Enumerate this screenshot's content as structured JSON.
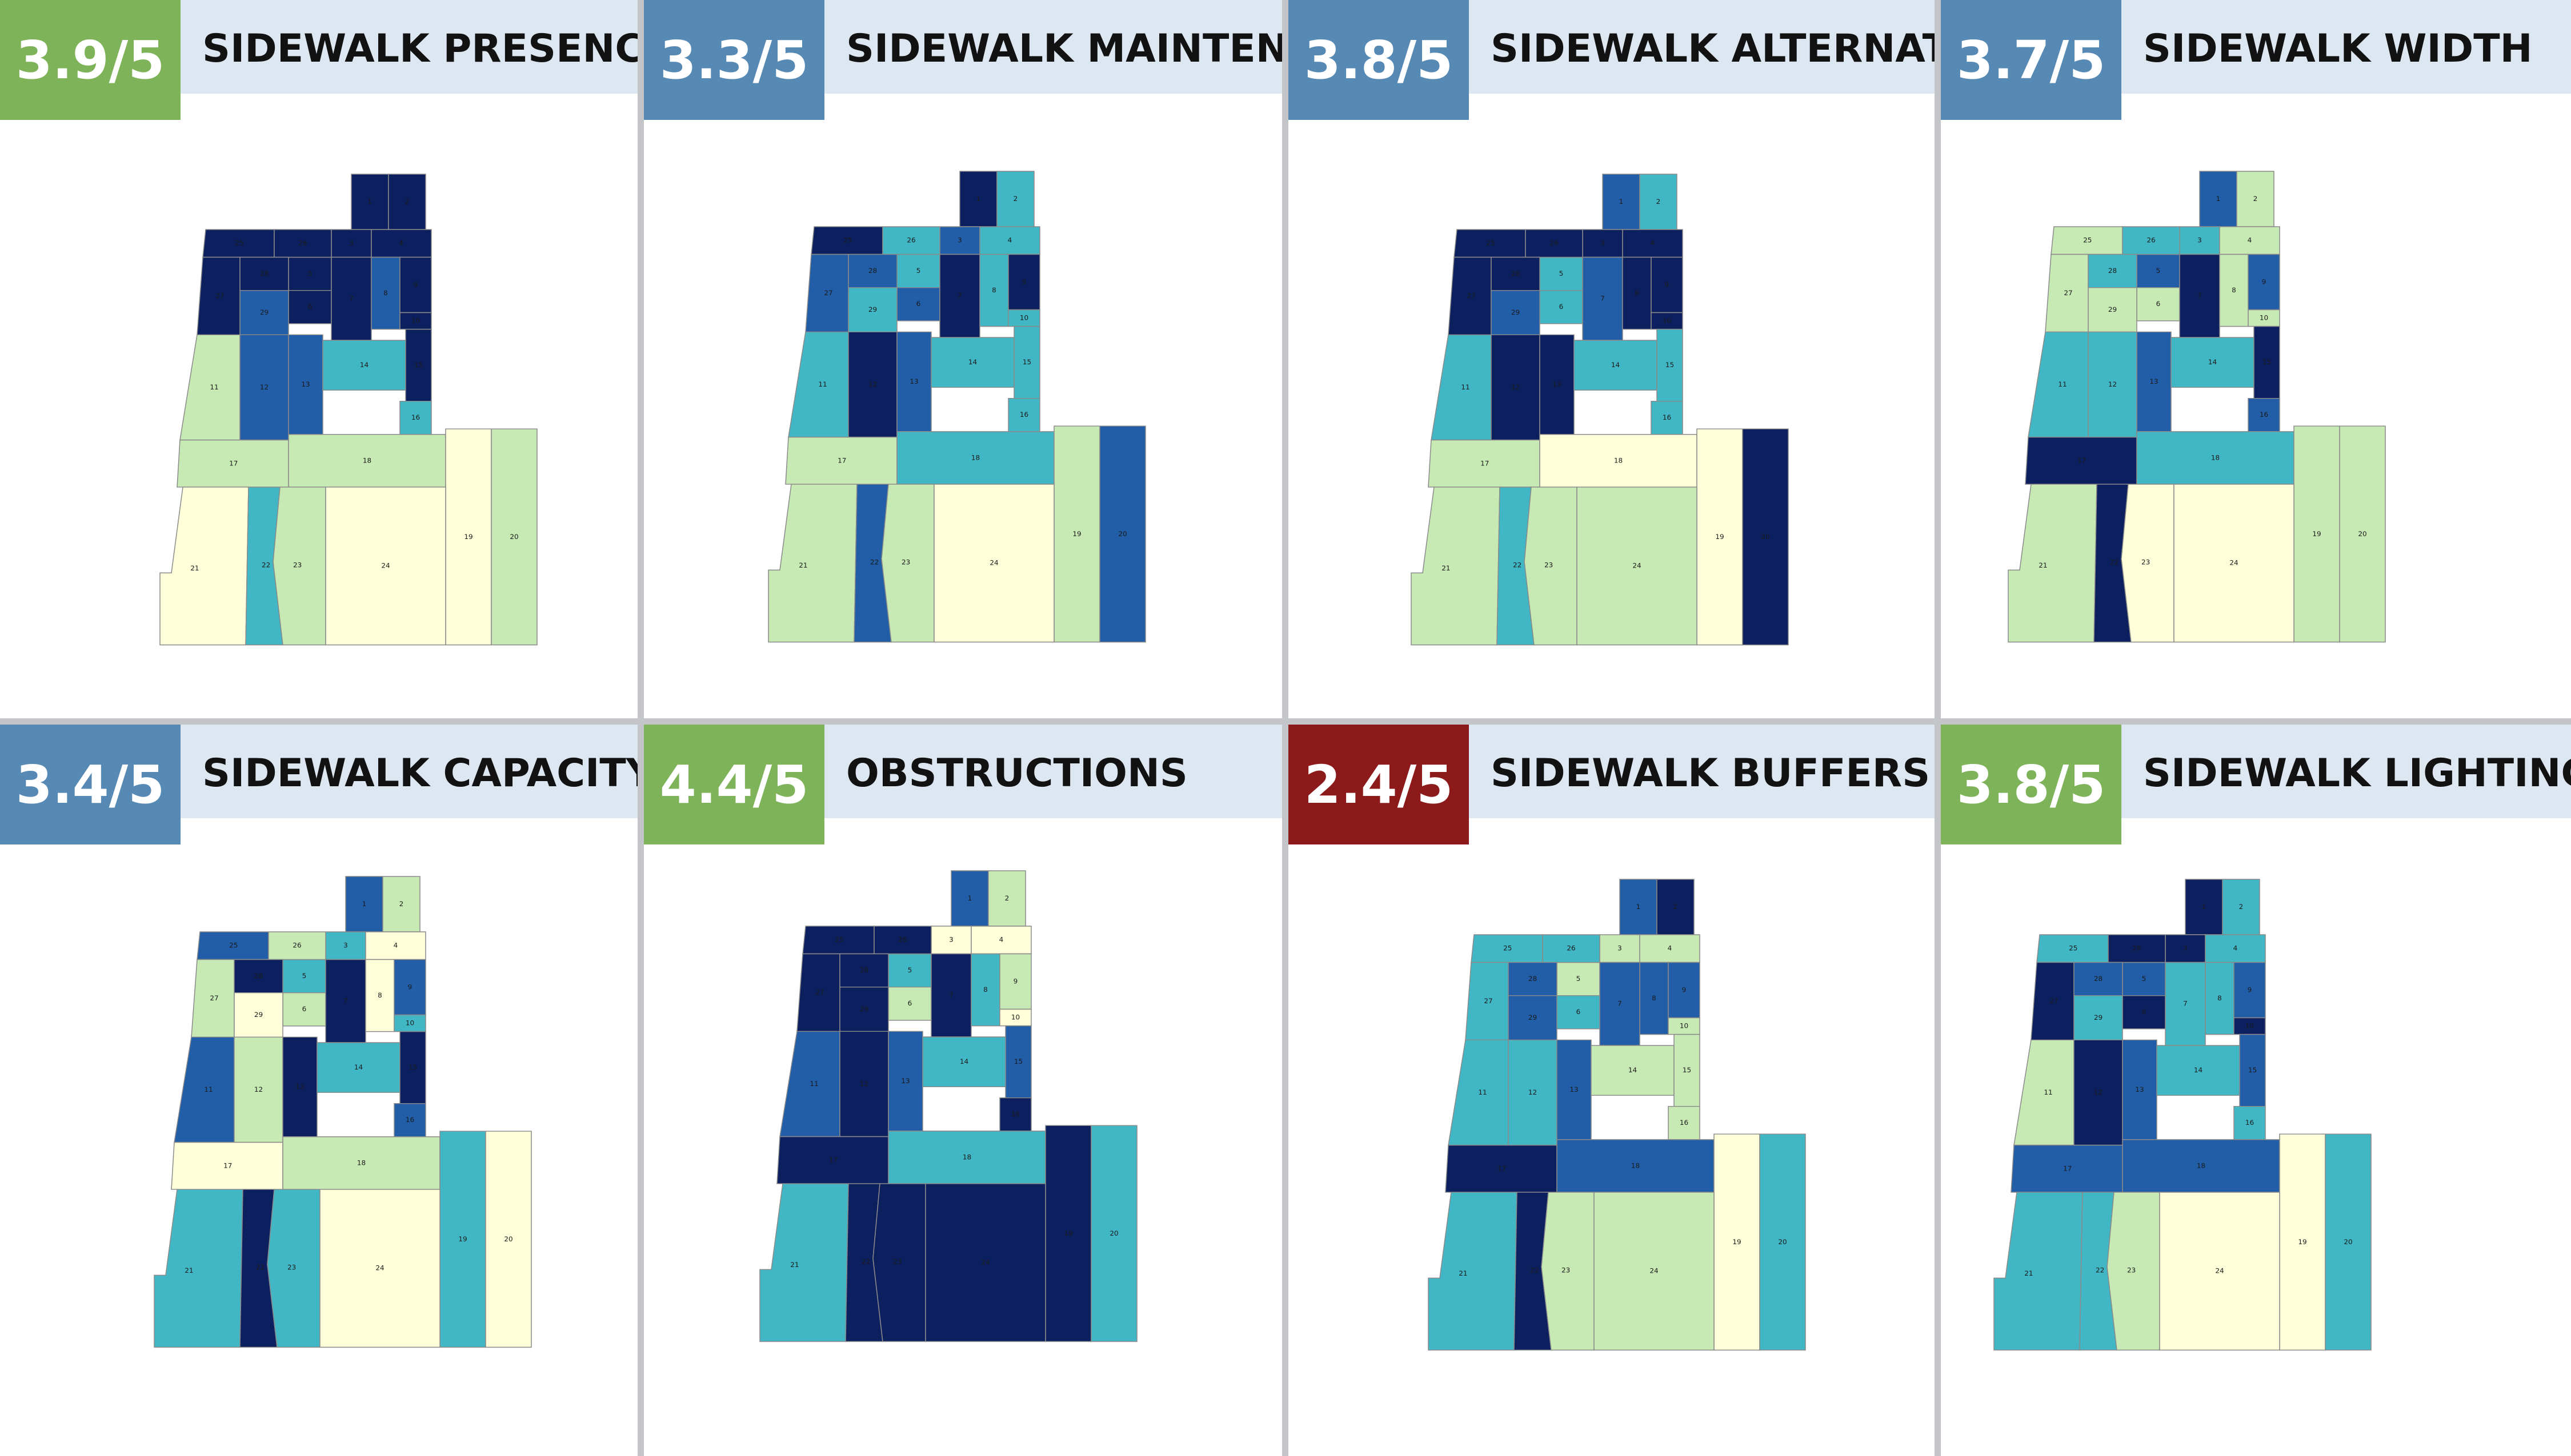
{
  "legend_colors": {
    "1": "#ffffd9",
    "2": "#c7e9b4",
    "3": "#41b6c4",
    "4": "#225ea8",
    "5": "#0c2060"
  },
  "badge_colors": {
    "green": "#7eb35a",
    "blue": "#5789b5",
    "red": "#8c1a1a"
  },
  "zone_ids": [
    "1",
    "2",
    "3",
    "4",
    "5",
    "6",
    "7",
    "8",
    "9",
    "10",
    "11",
    "12",
    "13",
    "14",
    "15",
    "16",
    "17",
    "18",
    "19",
    "20",
    "21",
    "22",
    "23",
    "24",
    "25",
    "26",
    "27",
    "28",
    "29"
  ],
  "panels": [
    {
      "score": "3.9/5",
      "badge": "green",
      "title": "SIDEWALK PRESENCE",
      "zones": {
        "1": 5,
        "2": 5,
        "3": 5,
        "4": 5,
        "5": 5,
        "6": 5,
        "7": 5,
        "8": 4,
        "9": 5,
        "10": 5,
        "11": 2,
        "12": 4,
        "13": 4,
        "14": 3,
        "15": 5,
        "16": 3,
        "17": 2,
        "18": 2,
        "19": 1,
        "20": 2,
        "21": 1,
        "22": 3,
        "23": 2,
        "24": 1,
        "25": 5,
        "26": 5,
        "27": 5,
        "28": 5,
        "29": 4
      }
    },
    {
      "score": "3.3/5",
      "badge": "blue",
      "title": "SIDEWALK MAINTENANCE",
      "zones": {
        "1": 5,
        "2": 3,
        "3": 4,
        "4": 3,
        "5": 3,
        "6": 4,
        "7": 5,
        "8": 3,
        "9": 5,
        "10": 3,
        "11": 3,
        "12": 5,
        "13": 4,
        "14": 3,
        "15": 3,
        "16": 3,
        "17": 2,
        "18": 3,
        "19": 2,
        "20": 4,
        "21": 2,
        "22": 4,
        "23": 2,
        "24": 1,
        "25": 5,
        "26": 3,
        "27": 4,
        "28": 4,
        "29": 3
      }
    },
    {
      "score": "3.8/5",
      "badge": "blue",
      "title": "SIDEWALK ALTERNATIVE",
      "zones": {
        "1": 4,
        "2": 3,
        "3": 5,
        "4": 5,
        "5": 3,
        "6": 3,
        "7": 4,
        "8": 5,
        "9": 5,
        "10": 5,
        "11": 3,
        "12": 5,
        "13": 5,
        "14": 3,
        "15": 3,
        "16": 3,
        "17": 2,
        "18": 1,
        "19": 1,
        "20": 5,
        "21": 2,
        "22": 3,
        "23": 2,
        "24": 2,
        "25": 5,
        "26": 5,
        "27": 5,
        "28": 5,
        "29": 4
      }
    },
    {
      "score": "3.7/5",
      "badge": "blue",
      "title": "SIDEWALK WIDTH",
      "zones": {
        "1": 4,
        "2": 2,
        "3": 3,
        "4": 2,
        "5": 4,
        "6": 2,
        "7": 5,
        "8": 2,
        "9": 4,
        "10": 2,
        "11": 3,
        "12": 3,
        "13": 4,
        "14": 3,
        "15": 5,
        "16": 4,
        "17": 5,
        "18": 3,
        "19": 2,
        "20": 2,
        "21": 2,
        "22": 5,
        "23": 1,
        "24": 1,
        "25": 2,
        "26": 3,
        "27": 2,
        "28": 3,
        "29": 2
      }
    },
    {
      "score": "3.4/5",
      "badge": "blue",
      "title": "SIDEWALK CAPACITY",
      "zones": {
        "1": 4,
        "2": 2,
        "3": 3,
        "4": 1,
        "5": 3,
        "6": 2,
        "7": 5,
        "8": 1,
        "9": 4,
        "10": 3,
        "11": 4,
        "12": 2,
        "13": 5,
        "14": 3,
        "15": 5,
        "16": 4,
        "17": 1,
        "18": 2,
        "19": 3,
        "20": 1,
        "21": 3,
        "22": 5,
        "23": 3,
        "24": 1,
        "25": 4,
        "26": 2,
        "27": 2,
        "28": 5,
        "29": 1
      }
    },
    {
      "score": "4.4/5",
      "badge": "green",
      "title": "OBSTRUCTIONS",
      "zones": {
        "1": 4,
        "2": 2,
        "3": 1,
        "4": 1,
        "5": 3,
        "6": 2,
        "7": 5,
        "8": 3,
        "9": 2,
        "10": 1,
        "11": 4,
        "12": 5,
        "13": 4,
        "14": 3,
        "15": 4,
        "16": 5,
        "17": 5,
        "18": 3,
        "19": 5,
        "20": 3,
        "21": 3,
        "22": 5,
        "23": 5,
        "24": 5,
        "25": 5,
        "26": 5,
        "27": 5,
        "28": 5,
        "29": 5
      }
    },
    {
      "score": "2.4/5",
      "badge": "red",
      "title": "SIDEWALK BUFFERS",
      "zones": {
        "1": 4,
        "2": 5,
        "3": 2,
        "4": 2,
        "5": 2,
        "6": 3,
        "7": 4,
        "8": 4,
        "9": 4,
        "10": 2,
        "11": 3,
        "12": 3,
        "13": 4,
        "14": 2,
        "15": 2,
        "16": 2,
        "17": 5,
        "18": 4,
        "19": 1,
        "20": 3,
        "21": 3,
        "22": 5,
        "23": 2,
        "24": 2,
        "25": 3,
        "26": 3,
        "27": 3,
        "28": 4,
        "29": 4
      }
    },
    {
      "score": "3.8/5",
      "badge": "green",
      "title": "SIDEWALK LIGHTING",
      "zones": {
        "1": 5,
        "2": 3,
        "3": 5,
        "4": 3,
        "5": 4,
        "6": 5,
        "7": 3,
        "8": 3,
        "9": 4,
        "10": 5,
        "11": 2,
        "12": 5,
        "13": 4,
        "14": 3,
        "15": 4,
        "16": 3,
        "17": 4,
        "18": 4,
        "19": 1,
        "20": 3,
        "21": 3,
        "22": 3,
        "23": 2,
        "24": 1,
        "25": 3,
        "26": 5,
        "27": 5,
        "28": 4,
        "29": 3
      }
    }
  ]
}
